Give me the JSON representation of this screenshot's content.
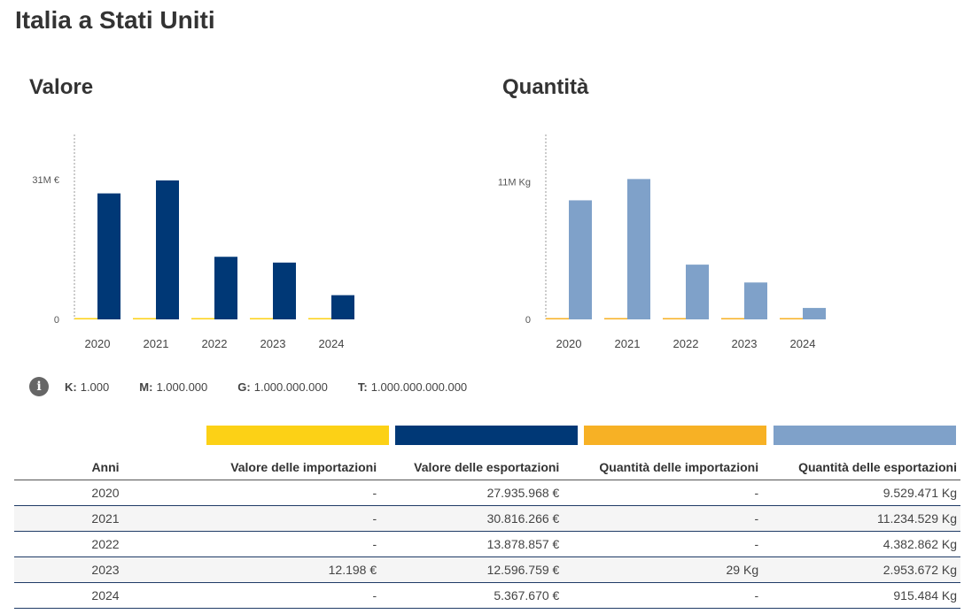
{
  "page": {
    "title": "Italia a Stati Uniti"
  },
  "colors": {
    "import_value": "#fcd116",
    "export_value": "#003876",
    "import_qty": "#f7b125",
    "export_qty": "#7fa1c9"
  },
  "chart_data": [
    {
      "type": "bar",
      "title": "Valore",
      "categories": [
        "2020",
        "2021",
        "2022",
        "2023",
        "2024"
      ],
      "series": [
        {
          "name": "Valore delle importazioni",
          "values": [
            0,
            0,
            0,
            12198,
            0
          ]
        },
        {
          "name": "Valore delle esportazioni",
          "values": [
            27935968,
            30816266,
            13878857,
            12596759,
            5367670
          ]
        }
      ],
      "ytick_values": [
        0,
        31000000
      ],
      "ytick_labels": [
        "0",
        "31M €"
      ],
      "ylim": [
        0,
        41000000
      ]
    },
    {
      "type": "bar",
      "title": "Quantità",
      "categories": [
        "2020",
        "2021",
        "2022",
        "2023",
        "2024"
      ],
      "series": [
        {
          "name": "Quantità delle importazioni",
          "values": [
            0,
            0,
            0,
            29,
            0
          ]
        },
        {
          "name": "Quantità delle esportazioni",
          "values": [
            9529471,
            11234529,
            4382862,
            2953672,
            915484
          ]
        }
      ],
      "ytick_values": [
        0,
        11000000
      ],
      "ytick_labels": [
        "0",
        "11M Kg"
      ],
      "ylim": [
        0,
        14800000
      ]
    }
  ],
  "units_legend": [
    {
      "key": "K:",
      "value": "1.000"
    },
    {
      "key": "M:",
      "value": "1.000.000"
    },
    {
      "key": "G:",
      "value": "1.000.000.000"
    },
    {
      "key": "T:",
      "value": "1.000.000.000.000"
    }
  ],
  "table": {
    "headers": [
      "Anni",
      "Valore delle importazioni",
      "Valore delle esportazioni",
      "Quantità delle importazioni",
      "Quantità delle esportazioni"
    ],
    "rows": [
      [
        "2020",
        "-",
        "27.935.968 €",
        "-",
        "9.529.471 Kg"
      ],
      [
        "2021",
        "-",
        "30.816.266 €",
        "-",
        "11.234.529 Kg"
      ],
      [
        "2022",
        "-",
        "13.878.857 €",
        "-",
        "4.382.862 Kg"
      ],
      [
        "2023",
        "12.198 €",
        "12.596.759 €",
        "29 Kg",
        "2.953.672 Kg"
      ],
      [
        "2024",
        "-",
        "5.367.670 €",
        "-",
        "915.484 Kg"
      ]
    ]
  }
}
